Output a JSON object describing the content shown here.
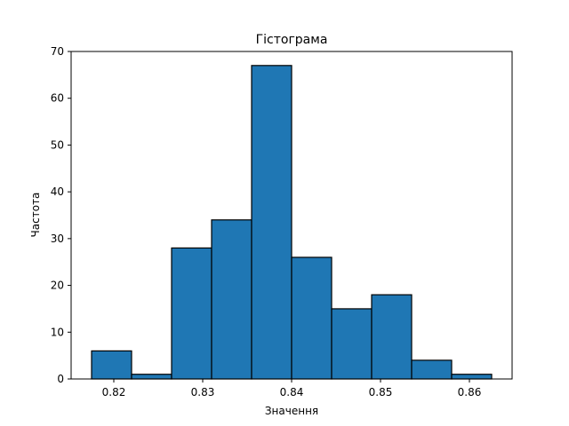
{
  "chart_data": {
    "type": "histogram",
    "title": "Гістограма",
    "xlabel": "Значення",
    "ylabel": "Частота",
    "bin_edges": [
      0.8175,
      0.822,
      0.8265,
      0.831,
      0.8355,
      0.84,
      0.8445,
      0.849,
      0.8535,
      0.858,
      0.8625
    ],
    "counts": [
      6,
      1,
      28,
      34,
      67,
      26,
      15,
      18,
      4,
      1
    ],
    "xlim": [
      0.8152,
      0.8648
    ],
    "ylim": [
      0,
      70
    ],
    "xticks": [
      0.82,
      0.83,
      0.84,
      0.85,
      0.86
    ],
    "xtick_labels": [
      "0.82",
      "0.83",
      "0.84",
      "0.85",
      "0.86"
    ],
    "yticks": [
      0,
      10,
      20,
      30,
      40,
      50,
      60,
      70
    ],
    "ytick_labels": [
      "0",
      "10",
      "20",
      "30",
      "40",
      "50",
      "60",
      "70"
    ],
    "bar_color": "#1f77b4",
    "edge_color": "#000000",
    "grid": false,
    "legend": "none"
  }
}
